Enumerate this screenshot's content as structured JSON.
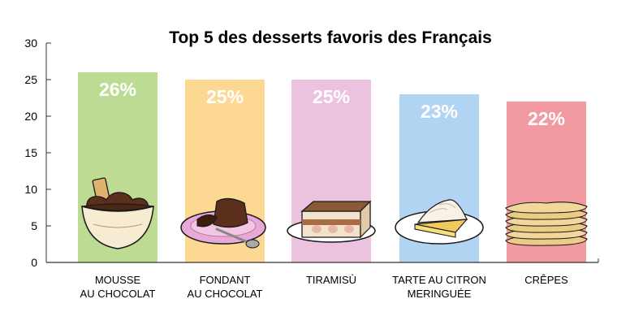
{
  "chart_data": {
    "type": "bar",
    "title": "Top 5 des desserts favoris des Français",
    "xlabel": "",
    "ylabel": "",
    "ylim": [
      0,
      30
    ],
    "yticks": [
      0,
      5,
      10,
      15,
      20,
      25,
      30
    ],
    "grid": false,
    "categories": [
      [
        "MOUSSE",
        "AU CHOCOLAT"
      ],
      [
        "FONDANT",
        "AU CHOCOLAT"
      ],
      [
        "TIRAMISÙ"
      ],
      [
        "TARTE AU CITRON",
        "MERINGUÉE"
      ],
      [
        "CRÊPES"
      ]
    ],
    "values": [
      26,
      25,
      25,
      23,
      22
    ],
    "data_labels": [
      "26%",
      "25%",
      "25%",
      "23%",
      "22%"
    ],
    "colors": [
      "#bedb93",
      "#fdd892",
      "#ecc3df",
      "#b0d4f1",
      "#f29aa1"
    ],
    "illustrations": [
      "chocolate-mousse-icon",
      "chocolate-fondant-icon",
      "tiramisu-icon",
      "lemon-meringue-tart-icon",
      "crepes-icon"
    ]
  }
}
